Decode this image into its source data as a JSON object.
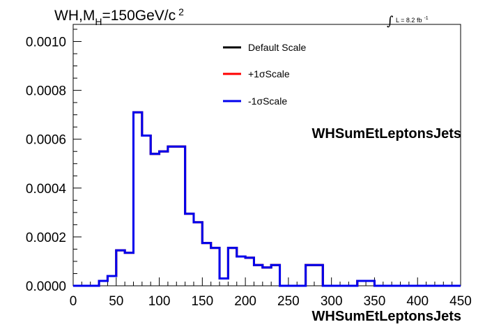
{
  "chart_data": {
    "type": "line",
    "title": {
      "prefix": "WH,M",
      "subscript": "H",
      "value": "=150GeV/c",
      "superscript": "2"
    },
    "luminosity": {
      "label": "L = 8.2 fb",
      "superscript": "-1"
    },
    "xlabel": "WHSumEtLeptonsJets",
    "ylabel": "",
    "xlim": [
      0,
      450
    ],
    "ylim": [
      0,
      0.00107
    ],
    "x_ticks": [
      "0",
      "50",
      "100",
      "150",
      "200",
      "250",
      "300",
      "350",
      "400",
      "450"
    ],
    "y_ticks": [
      "0.0000",
      "0.0002",
      "0.0004",
      "0.0006",
      "0.0008",
      "0.0010"
    ],
    "legend_position": "top-center",
    "bin_width": 10,
    "bin_edges": [
      0,
      450
    ],
    "series": [
      {
        "name": "Default Scale",
        "color": "#000000",
        "values": [
          0,
          0,
          0,
          2e-05,
          4e-05,
          0.000145,
          0.000135,
          0.00071,
          0.000615,
          0.00054,
          0.00055,
          0.00057,
          0.00057,
          0.000295,
          0.00026,
          0.000175,
          0.000155,
          3e-05,
          0.000155,
          0.00012,
          0.000115,
          8.5e-05,
          7.5e-05,
          8.5e-05,
          0,
          0,
          0,
          8.5e-05,
          8.5e-05,
          0,
          0,
          0,
          0,
          2e-05,
          2e-05,
          0,
          0,
          0,
          0,
          0,
          0,
          0,
          0,
          0,
          0
        ]
      },
      {
        "name": "+1σScale",
        "color": "#ff0000",
        "values": [
          0,
          0,
          0,
          2e-05,
          4e-05,
          0.000145,
          0.000135,
          0.00071,
          0.000615,
          0.00054,
          0.00055,
          0.00057,
          0.00057,
          0.000295,
          0.00026,
          0.000175,
          0.000155,
          3e-05,
          0.000155,
          0.00012,
          0.000115,
          8.5e-05,
          7.5e-05,
          8.5e-05,
          0,
          0,
          0,
          8.5e-05,
          8.5e-05,
          0,
          0,
          0,
          0,
          2e-05,
          2e-05,
          0,
          0,
          0,
          0,
          0,
          0,
          0,
          0,
          0,
          0
        ]
      },
      {
        "name": "-1σScale",
        "color": "#0000ee",
        "values": [
          0,
          0,
          0,
          2e-05,
          4e-05,
          0.000145,
          0.000135,
          0.00071,
          0.000615,
          0.00054,
          0.00055,
          0.00057,
          0.00057,
          0.000295,
          0.00026,
          0.000175,
          0.000155,
          3e-05,
          0.000155,
          0.00012,
          0.000115,
          8.5e-05,
          7.5e-05,
          8.5e-05,
          0,
          0,
          0,
          8.5e-05,
          8.5e-05,
          0,
          0,
          0,
          0,
          2e-05,
          2e-05,
          0,
          0,
          0,
          0,
          0,
          0,
          0,
          0,
          0,
          0
        ]
      }
    ]
  }
}
